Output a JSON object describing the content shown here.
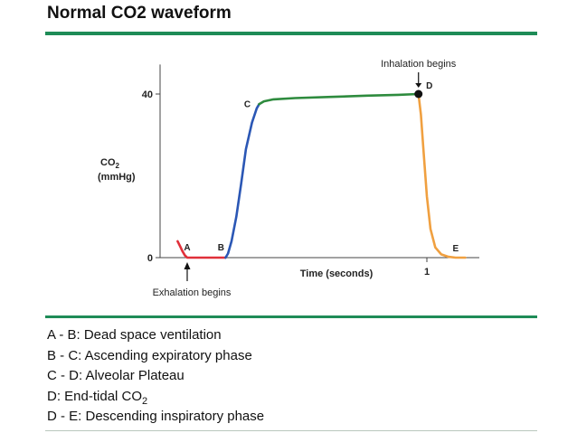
{
  "slide": {
    "title": "Normal CO2 waveform"
  },
  "chart_data": {
    "type": "line",
    "title": "",
    "xlabel": "Time (seconds)",
    "ylabel": "CO2 (mmHg)",
    "ylabel_parts": {
      "main": "CO",
      "sub": "2",
      "unit": "(mmHg)"
    },
    "xlim": [
      0,
      1.2
    ],
    "ylim": [
      0,
      45
    ],
    "y_ticks": [
      0,
      40
    ],
    "x_ticks": [
      1
    ],
    "grid": false,
    "series": [
      {
        "phase": "A-B",
        "color": "#e0303a",
        "x": [
          -0.04,
          -0.03,
          -0.02,
          -0.01,
          0.0,
          0.1,
          0.16
        ],
        "y": [
          4.0,
          2.8,
          1.6,
          0.6,
          0.0,
          0.0,
          0.0
        ]
      },
      {
        "phase": "B-C",
        "color": "#2b57b5",
        "x": [
          0.16,
          0.17,
          0.185,
          0.205,
          0.225,
          0.245,
          0.27,
          0.29,
          0.3
        ],
        "y": [
          0.0,
          1.0,
          4.0,
          10.0,
          18.0,
          26.5,
          33.0,
          36.5,
          37.5
        ]
      },
      {
        "phase": "C-D",
        "color": "#2e8b3e",
        "x": [
          0.3,
          0.32,
          0.36,
          0.45,
          0.6,
          0.75,
          0.88,
          0.965
        ],
        "y": [
          37.5,
          38.2,
          38.7,
          39.0,
          39.3,
          39.6,
          39.8,
          40.0
        ]
      },
      {
        "phase": "D-E",
        "color": "#f0a040",
        "x": [
          0.965,
          0.975,
          0.985,
          1.0,
          1.015,
          1.035,
          1.06,
          1.09,
          1.12,
          1.16
        ],
        "y": [
          40.0,
          35.0,
          27.0,
          15.0,
          7.0,
          2.5,
          0.8,
          0.2,
          0.0,
          0.0
        ]
      }
    ],
    "points": [
      {
        "label": "A",
        "x": 0.0,
        "y": 0.0
      },
      {
        "label": "B",
        "x": 0.16,
        "y": 0.0
      },
      {
        "label": "C",
        "x": 0.3,
        "y": 37.5
      },
      {
        "label": "D",
        "x": 0.965,
        "y": 40.0
      },
      {
        "label": "E",
        "x": 1.12,
        "y": 0.0
      }
    ],
    "annotations": [
      {
        "text": "Inhalation begins",
        "x": 0.965,
        "y": 40.0,
        "position": "above"
      },
      {
        "text": "Exhalation begins",
        "x": 0.0,
        "y": 0.0,
        "position": "below"
      }
    ]
  },
  "legend": [
    {
      "text": "A - B: Dead space ventilation"
    },
    {
      "text": "B - C: Ascending expiratory phase"
    },
    {
      "text": "C - D: Alveolar Plateau"
    },
    {
      "text": "D: End-tidal CO",
      "sub": "2"
    },
    {
      "text": "D - E: Descending inspiratory phase"
    }
  ]
}
